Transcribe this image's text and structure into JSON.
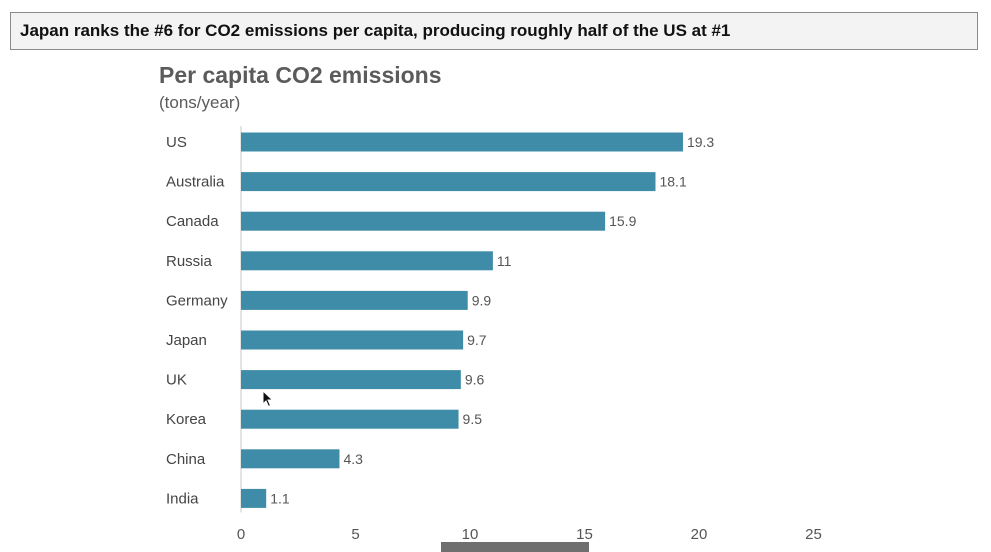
{
  "headline": "Japan ranks the #6 for CO2 emissions per capita, producing roughly half of the US at #1",
  "chart_data": {
    "type": "bar",
    "orientation": "horizontal",
    "title": "Per capita CO2 emissions",
    "subtitle": "(tons/year)",
    "categories": [
      "US",
      "Australia",
      "Canada",
      "Russia",
      "Germany",
      "Japan",
      "UK",
      "Korea",
      "China",
      "India"
    ],
    "values": [
      19.3,
      18.1,
      15.9,
      11,
      9.9,
      9.7,
      9.6,
      9.5,
      4.3,
      1.1
    ],
    "value_labels": [
      "19.3",
      "18.1",
      "15.9",
      "11",
      "9.9",
      "9.7",
      "9.6",
      "9.5",
      "4.3",
      "1.1"
    ],
    "xlim": [
      0,
      25
    ],
    "x_ticks": [
      0,
      5,
      10,
      15,
      20,
      25
    ],
    "grid": false,
    "legend": "none",
    "bar_color": "#3f8ca8"
  }
}
